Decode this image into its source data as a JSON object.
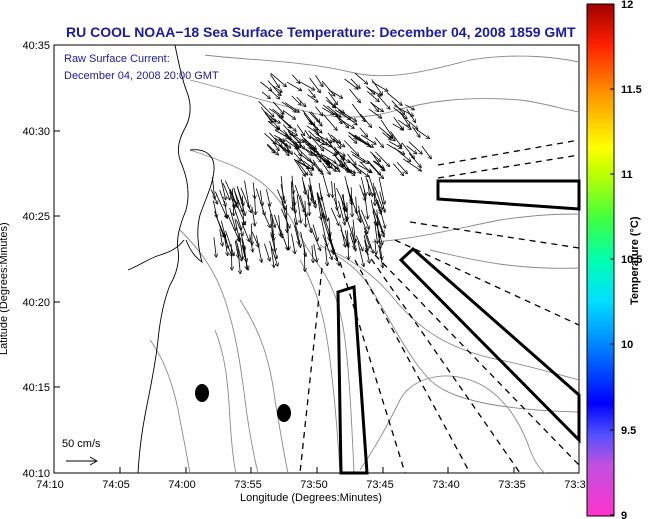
{
  "title": "RU COOL  NOAA−18  Sea Surface Temperature:  December 04, 2008 1859 GMT",
  "legend": {
    "line1": "Raw Surface Current:",
    "line2": "December 04, 2008 20:00 GMT"
  },
  "axes": {
    "xlabel": "Longitude (Degrees:Minutes)",
    "ylabel": "Latitude (Degrees:Minutes)",
    "xticks": [
      "74:10",
      "74:05",
      "74:00",
      "73:55",
      "73:50",
      "73:45",
      "73:40",
      "73:35",
      "73:3"
    ],
    "yticks": [
      "40:35",
      "40:30",
      "40:25",
      "40:20",
      "40:15",
      "40:10"
    ]
  },
  "scale_arrow": {
    "label": "50 cm/s"
  },
  "colorbar": {
    "label": "Temperature (°C)",
    "ticks": [
      "12",
      "11.5",
      "11",
      "10.5",
      "10",
      "9.5",
      "9"
    ],
    "min": 9,
    "max": 12
  }
}
